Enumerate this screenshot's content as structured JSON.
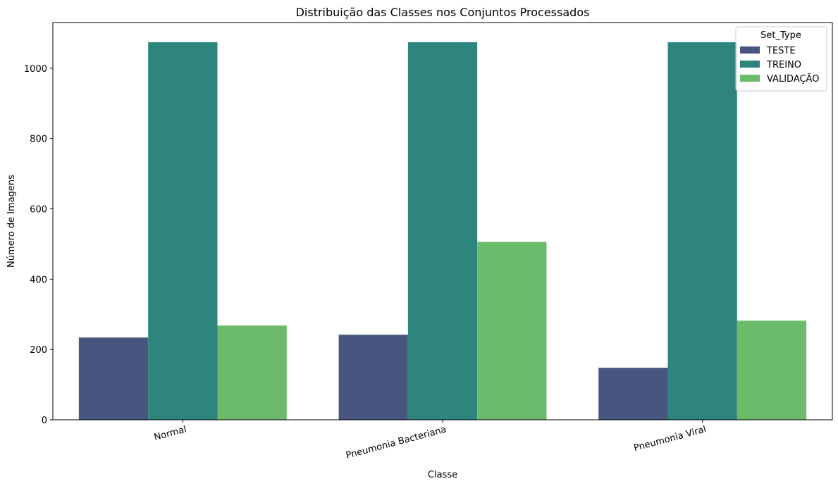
{
  "chart_data": {
    "type": "bar",
    "title": "Distribuição das Classes nos Conjuntos Processados",
    "xlabel": "Classe",
    "ylabel": "Número de Imagens",
    "categories": [
      "Normal",
      "Pneumonia Bacteriana",
      "Pneumonia Viral"
    ],
    "series": [
      {
        "name": "TESTE",
        "values": [
          234,
          242,
          148
        ],
        "color": "#46567f"
      },
      {
        "name": "TREINO",
        "values": [
          1074,
          1074,
          1074
        ],
        "color": "#2e857e"
      },
      {
        "name": "VALIDAÇÃO",
        "values": [
          268,
          506,
          282
        ],
        "color": "#6cbb6b"
      }
    ],
    "ylim": [
      0,
      1130
    ],
    "yticks": [
      "0",
      "200",
      "400",
      "600",
      "800",
      "1000"
    ],
    "grid": false,
    "legend": {
      "title": "Set_Type",
      "placement": "top-right"
    }
  }
}
